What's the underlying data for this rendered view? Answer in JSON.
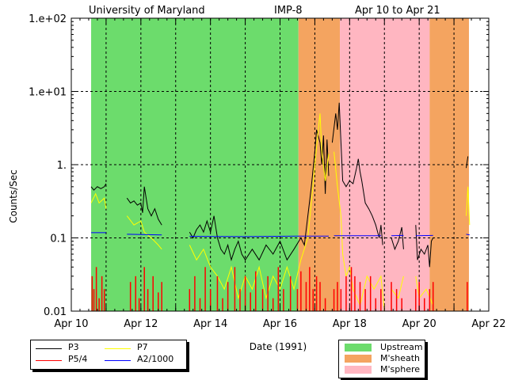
{
  "chart_data": {
    "type": "line",
    "title": {
      "left": "University of Maryland",
      "center": "IMP-8",
      "right": "Apr 10 to Apr 21"
    },
    "xlabel": "Date (1991)",
    "ylabel": "Counts/Sec",
    "x_unit": "days since Apr 10 00:00",
    "xlim": [
      0,
      12
    ],
    "ylim": [
      0.01,
      100
    ],
    "yscale": "log",
    "grid": true,
    "x_ticks": [
      {
        "v": 0,
        "label": "Apr 10"
      },
      {
        "v": 2,
        "label": "Apr 12"
      },
      {
        "v": 4,
        "label": "Apr 14"
      },
      {
        "v": 6,
        "label": "Apr 16"
      },
      {
        "v": 8,
        "label": "Apr 18"
      },
      {
        "v": 10,
        "label": "Apr 20"
      },
      {
        "v": 12,
        "label": "Apr 22"
      }
    ],
    "y_ticks": [
      {
        "v": 100,
        "label": "1.e+02"
      },
      {
        "v": 10,
        "label": "1.e+01"
      },
      {
        "v": 1,
        "label": "1."
      },
      {
        "v": 0.1,
        "label": "0.1"
      },
      {
        "v": 0.01,
        "label": "0.01"
      }
    ],
    "regions": [
      {
        "name": "Upstream",
        "start": 0.57,
        "end": 6.53,
        "color": "#6cdc6c"
      },
      {
        "name": "M'sheath",
        "start": 6.53,
        "end": 7.72,
        "color": "#f4a460"
      },
      {
        "name": "M'sphere",
        "start": 7.72,
        "end": 10.3,
        "color": "#ffb6c1"
      },
      {
        "name": "M'sheath",
        "start": 10.3,
        "end": 11.43,
        "color": "#f4a460"
      }
    ],
    "region_legend": [
      {
        "label": "Upstream",
        "color": "#6cdc6c"
      },
      {
        "label": "M'sheath",
        "color": "#f4a460"
      },
      {
        "label": "M'sphere",
        "color": "#ffb6c1"
      }
    ],
    "series": [
      {
        "name": "P3",
        "color": "#000000",
        "points": [
          [
            0.57,
            0.5
          ],
          [
            0.65,
            0.45
          ],
          [
            0.75,
            0.5
          ],
          [
            0.85,
            0.47
          ],
          [
            0.95,
            0.5
          ],
          [
            1.0,
            0.55
          ],
          null,
          [
            1.6,
            0.35
          ],
          [
            1.7,
            0.3
          ],
          [
            1.8,
            0.32
          ],
          [
            1.9,
            0.28
          ],
          [
            2.0,
            0.3
          ],
          [
            2.05,
            0.22
          ],
          [
            2.1,
            0.5
          ],
          [
            2.2,
            0.25
          ],
          [
            2.3,
            0.2
          ],
          [
            2.4,
            0.25
          ],
          [
            2.5,
            0.18
          ],
          [
            2.6,
            0.15
          ],
          null,
          [
            3.4,
            0.12
          ],
          [
            3.5,
            0.1
          ],
          [
            3.6,
            0.13
          ],
          [
            3.7,
            0.15
          ],
          [
            3.8,
            0.12
          ],
          [
            3.9,
            0.17
          ],
          [
            4.0,
            0.12
          ],
          [
            4.1,
            0.2
          ],
          [
            4.2,
            0.1
          ],
          [
            4.3,
            0.07
          ],
          [
            4.4,
            0.06
          ],
          [
            4.5,
            0.08
          ],
          [
            4.6,
            0.05
          ],
          [
            4.7,
            0.07
          ],
          [
            4.8,
            0.09
          ],
          [
            4.9,
            0.06
          ],
          [
            5.0,
            0.05
          ],
          [
            5.2,
            0.07
          ],
          [
            5.4,
            0.05
          ],
          [
            5.6,
            0.08
          ],
          [
            5.8,
            0.06
          ],
          [
            6.0,
            0.09
          ],
          [
            6.2,
            0.05
          ],
          [
            6.4,
            0.07
          ],
          [
            6.6,
            0.1
          ],
          [
            6.7,
            0.08
          ],
          [
            6.8,
            0.2
          ],
          [
            6.9,
            0.5
          ],
          [
            7.0,
            1.5
          ],
          [
            7.05,
            3
          ],
          [
            7.15,
            2
          ],
          [
            7.2,
            1
          ],
          [
            7.25,
            2.5
          ],
          [
            7.3,
            0.4
          ],
          [
            7.35,
            2.2
          ],
          [
            7.4,
            0.7
          ],
          null,
          [
            7.5,
            2
          ],
          [
            7.6,
            5
          ],
          [
            7.65,
            3
          ],
          [
            7.7,
            7
          ],
          [
            7.75,
            2
          ],
          [
            7.8,
            0.6
          ],
          [
            7.9,
            0.5
          ],
          [
            8.0,
            0.6
          ],
          [
            8.1,
            0.55
          ],
          [
            8.2,
            0.9
          ],
          [
            8.25,
            1.2
          ],
          [
            8.3,
            0.8
          ],
          [
            8.35,
            0.6
          ],
          [
            8.45,
            0.3
          ],
          [
            8.55,
            0.25
          ],
          [
            8.65,
            0.2
          ],
          [
            8.75,
            0.15
          ],
          [
            8.85,
            0.1
          ],
          [
            8.9,
            0.15
          ],
          [
            8.95,
            0.08
          ],
          null,
          [
            9.2,
            0.1
          ],
          [
            9.3,
            0.07
          ],
          [
            9.4,
            0.09
          ],
          [
            9.5,
            0.14
          ],
          [
            9.55,
            0.07
          ],
          null,
          [
            9.9,
            0.15
          ],
          [
            9.95,
            0.05
          ],
          [
            10.05,
            0.07
          ],
          [
            10.15,
            0.06
          ],
          [
            10.25,
            0.08
          ],
          [
            10.3,
            0.04
          ],
          [
            10.35,
            0.09
          ],
          [
            10.4,
            0.1
          ],
          null,
          [
            11.35,
            0.9
          ],
          [
            11.4,
            1.3
          ]
        ]
      },
      {
        "name": "P7",
        "color": "#ffff00",
        "points": [
          [
            0.57,
            0.3
          ],
          [
            0.7,
            0.4
          ],
          [
            0.8,
            0.3
          ],
          [
            0.95,
            0.35
          ],
          [
            1.0,
            0.25
          ],
          null,
          [
            1.6,
            0.2
          ],
          [
            1.8,
            0.15
          ],
          [
            2.0,
            0.17
          ],
          [
            2.1,
            0.12
          ],
          [
            2.3,
            0.1
          ],
          [
            2.5,
            0.08
          ],
          [
            2.6,
            0.07
          ],
          null,
          [
            3.4,
            0.08
          ],
          [
            3.6,
            0.05
          ],
          [
            3.8,
            0.07
          ],
          [
            4.0,
            0.04
          ],
          [
            4.2,
            0.03
          ],
          [
            4.4,
            0.02
          ],
          [
            4.6,
            0.04
          ],
          [
            4.8,
            0.015
          ],
          [
            5.0,
            0.03
          ],
          [
            5.2,
            0.02
          ],
          [
            5.4,
            0.04
          ],
          [
            5.6,
            0.015
          ],
          [
            5.8,
            0.03
          ],
          [
            6.0,
            0.02
          ],
          [
            6.2,
            0.04
          ],
          [
            6.4,
            0.02
          ],
          [
            6.6,
            0.05
          ],
          [
            6.8,
            0.1
          ],
          [
            6.9,
            0.3
          ],
          [
            7.0,
            1
          ],
          [
            7.1,
            3
          ],
          [
            7.15,
            5
          ],
          [
            7.2,
            1.5
          ],
          [
            7.3,
            0.6
          ],
          [
            7.4,
            1.4
          ],
          null,
          [
            7.55,
            1.5
          ],
          [
            7.65,
            0.5
          ],
          [
            7.75,
            0.2
          ],
          [
            7.8,
            0.06
          ],
          [
            7.9,
            0.03
          ],
          [
            8.0,
            0.04
          ],
          [
            8.1,
            0.02
          ],
          [
            8.3,
            0.012
          ],
          [
            8.5,
            0.03
          ],
          [
            8.7,
            0.02
          ],
          [
            8.9,
            0.03
          ],
          [
            9.0,
            0.01
          ],
          null,
          [
            9.2,
            0.02
          ],
          [
            9.4,
            0.015
          ],
          [
            9.55,
            0.03
          ],
          null,
          [
            9.9,
            0.03
          ],
          [
            10.0,
            0.015
          ],
          [
            10.2,
            0.02
          ],
          [
            10.4,
            0.012
          ],
          null,
          [
            11.35,
            0.2
          ],
          [
            11.4,
            0.5
          ],
          [
            11.45,
            0.15
          ]
        ]
      },
      {
        "name": "P5/4",
        "color": "#ff0000",
        "style": "spikes",
        "points": [
          [
            0.6,
            0.03
          ],
          [
            0.65,
            0.02
          ],
          [
            0.72,
            0.04
          ],
          [
            0.8,
            0.015
          ],
          [
            0.88,
            0.03
          ],
          [
            0.95,
            0.02
          ],
          [
            1.7,
            0.025
          ],
          [
            1.85,
            0.03
          ],
          [
            1.95,
            0.015
          ],
          [
            2.1,
            0.04
          ],
          [
            2.2,
            0.02
          ],
          [
            2.35,
            0.03
          ],
          [
            2.5,
            0.018
          ],
          [
            2.6,
            0.025
          ],
          [
            3.4,
            0.02
          ],
          [
            3.55,
            0.03
          ],
          [
            3.7,
            0.015
          ],
          [
            3.85,
            0.04
          ],
          [
            4.0,
            0.02
          ],
          [
            4.2,
            0.03
          ],
          [
            4.35,
            0.015
          ],
          [
            4.5,
            0.025
          ],
          [
            4.7,
            0.04
          ],
          [
            4.85,
            0.02
          ],
          [
            5.0,
            0.03
          ],
          [
            5.15,
            0.018
          ],
          [
            5.3,
            0.035
          ],
          [
            5.5,
            0.02
          ],
          [
            5.65,
            0.03
          ],
          [
            5.8,
            0.015
          ],
          [
            5.95,
            0.04
          ],
          [
            6.1,
            0.02
          ],
          [
            6.3,
            0.03
          ],
          [
            6.5,
            0.02
          ],
          [
            6.6,
            0.035
          ],
          [
            6.75,
            0.025
          ],
          [
            6.85,
            0.04
          ],
          [
            6.95,
            0.02
          ],
          [
            7.05,
            0.03
          ],
          [
            7.15,
            0.025
          ],
          [
            7.3,
            0.015
          ],
          [
            7.55,
            0.02
          ],
          [
            7.65,
            0.025
          ],
          [
            7.75,
            0.02
          ],
          [
            7.9,
            0.03
          ],
          [
            8.05,
            0.04
          ],
          [
            8.15,
            0.03
          ],
          [
            8.3,
            0.025
          ],
          [
            8.45,
            0.02
          ],
          [
            8.6,
            0.03
          ],
          [
            8.75,
            0.015
          ],
          [
            8.9,
            0.02
          ],
          [
            9.2,
            0.025
          ],
          [
            9.35,
            0.02
          ],
          [
            9.5,
            0.015
          ],
          [
            9.9,
            0.02
          ],
          [
            10.0,
            0.025
          ],
          [
            10.15,
            0.015
          ],
          [
            10.3,
            0.02
          ],
          [
            10.4,
            0.025
          ],
          [
            11.38,
            0.025
          ]
        ]
      },
      {
        "name": "A2/1000",
        "color": "#0000ff",
        "points": [
          [
            0.57,
            0.118
          ],
          [
            1.0,
            0.118
          ],
          null,
          [
            1.6,
            0.112
          ],
          [
            2.6,
            0.11
          ],
          null,
          [
            3.4,
            0.105
          ],
          [
            5.0,
            0.104
          ],
          [
            6.5,
            0.106
          ],
          [
            7.4,
            0.106
          ],
          null,
          [
            7.55,
            0.107
          ],
          [
            8.9,
            0.107
          ],
          null,
          [
            9.2,
            0.107
          ],
          [
            9.55,
            0.108
          ],
          null,
          [
            9.9,
            0.107
          ],
          [
            10.4,
            0.108
          ],
          null,
          [
            11.35,
            0.112
          ],
          [
            11.45,
            0.11
          ]
        ]
      }
    ]
  }
}
